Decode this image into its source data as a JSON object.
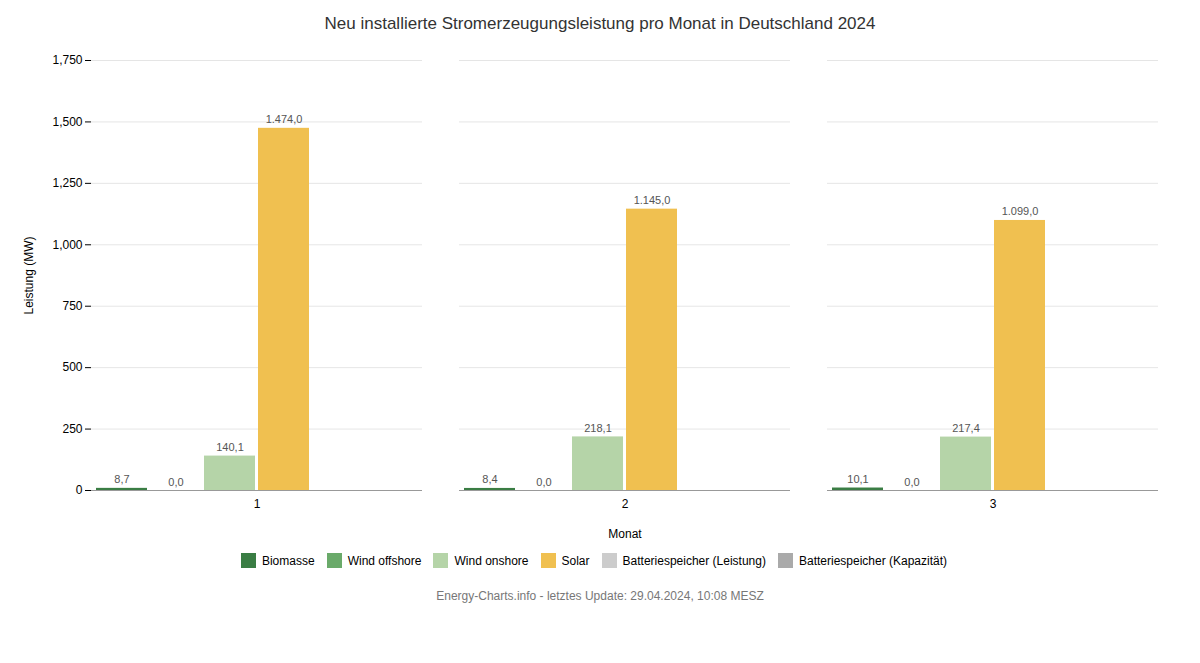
{
  "chart_data": {
    "type": "bar",
    "title": "Neu installierte Stromerzeugungsleistung pro Monat in Deutschland 2024",
    "caption": "Energy-Charts.info - letztes Update: 29.04.2024, 10:08 MESZ",
    "xlabel": "Monat",
    "ylabel": "Leistung (MW)",
    "categories": [
      "1",
      "2",
      "3"
    ],
    "series": [
      {
        "name": "Biomasse",
        "color": "#3a7d44",
        "values": [
          8.7,
          8.4,
          10.1
        ],
        "value_labels": [
          "8,7",
          "8,4",
          "10,1"
        ]
      },
      {
        "name": "Wind offshore",
        "color": "#6aaa6a",
        "values": [
          0.0,
          0.0,
          0.0
        ],
        "value_labels": [
          "0,0",
          "0,0",
          "0,0"
        ]
      },
      {
        "name": "Wind onshore",
        "color": "#b5d4a8",
        "values": [
          140.1,
          218.1,
          217.4
        ],
        "value_labels": [
          "140,1",
          "218,1",
          "217,4"
        ]
      },
      {
        "name": "Solar",
        "color": "#f0c050",
        "values": [
          1474.0,
          1145.0,
          1099.0
        ],
        "value_labels": [
          "1.474,0",
          "1.145,0",
          "1.099,0"
        ]
      },
      {
        "name": "Batteriespeicher (Leistung)",
        "color": "#cccccc",
        "values": [
          0.0,
          0.0,
          0.0
        ]
      },
      {
        "name": "Batteriespeicher (Kapazität)",
        "color": "#aaaaaa",
        "values": [
          0.0,
          0.0,
          0.0
        ]
      }
    ],
    "ylim": [
      0,
      1750
    ],
    "yticks": [
      0,
      250,
      500,
      750,
      1000,
      1250,
      1500,
      1750
    ],
    "grid": true,
    "legend": "bottom",
    "data_labels": true
  }
}
